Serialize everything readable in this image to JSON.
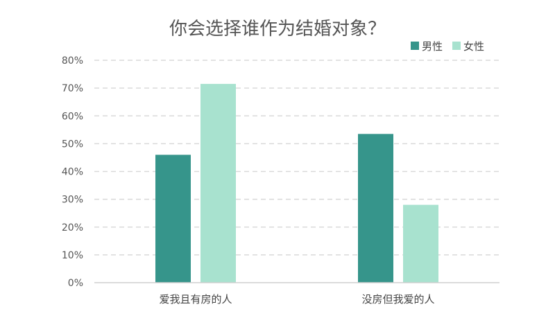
{
  "chart_data": {
    "type": "bar",
    "title": "你会选择谁作为结婚对象？",
    "categories": [
      "爱我且有房的人",
      "没房但我爱的人"
    ],
    "series": [
      {
        "name": "男性",
        "values": [
          46,
          53.5
        ],
        "color": "#36958b"
      },
      {
        "name": "女性",
        "values": [
          71.5,
          28
        ],
        "color": "#a8e2cf"
      }
    ],
    "xlabel": "",
    "ylabel": "",
    "ylim": [
      0,
      80
    ],
    "yticks": [
      "0%",
      "10%",
      "20%",
      "30%",
      "40%",
      "50%",
      "60%",
      "70%",
      "80%"
    ],
    "grid": true,
    "legend_position": "top-right"
  }
}
